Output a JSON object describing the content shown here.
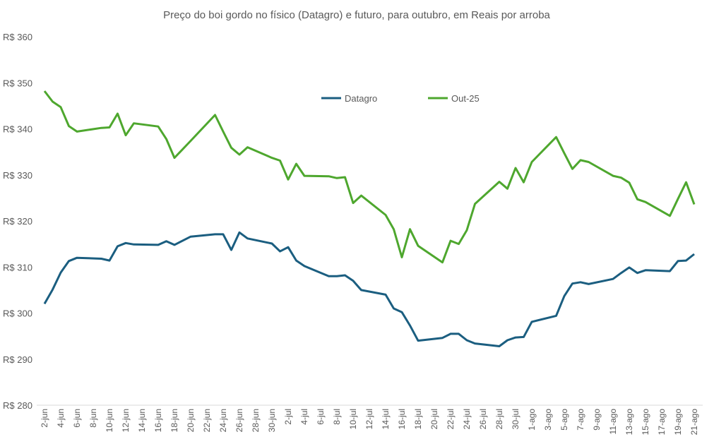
{
  "chart_data": {
    "type": "line",
    "title": "Preço do boi gordo no físico (Datagro) e futuro, para outubro, em Reais por arroba",
    "xlabel": "",
    "ylabel": "",
    "ylim": [
      280,
      360
    ],
    "y_ticks": [
      "R$ 280",
      "R$ 290",
      "R$ 300",
      "R$ 310",
      "R$ 320",
      "R$ 330",
      "R$ 340",
      "R$ 350",
      "R$ 360"
    ],
    "y_tick_values": [
      280,
      290,
      300,
      310,
      320,
      330,
      340,
      350,
      360
    ],
    "x_range": [
      "2-jun",
      "21-ago"
    ],
    "x_ticks": [
      "2-jun",
      "4-jun",
      "6-jun",
      "8-jun",
      "10-jun",
      "12-jun",
      "14-jun",
      "16-jun",
      "18-jun",
      "20-jun",
      "22-jun",
      "24-jun",
      "26-jun",
      "28-jun",
      "30-jun",
      "2-jul",
      "4-jul",
      "6-jul",
      "8-jul",
      "10-jul",
      "12-jul",
      "14-jul",
      "16-jul",
      "18-jul",
      "20-jul",
      "22-jul",
      "24-jul",
      "26-jul",
      "28-jul",
      "30-jul",
      "1-ago",
      "3-ago",
      "5-ago",
      "7-ago",
      "9-ago",
      "11-ago",
      "13-ago",
      "15-ago",
      "17-ago",
      "19-ago",
      "21-ago"
    ],
    "grid": false,
    "legend": "top-center",
    "x": [
      "2-jun",
      "3-jun",
      "4-jun",
      "5-jun",
      "6-jun",
      "9-jun",
      "10-jun",
      "11-jun",
      "12-jun",
      "13-jun",
      "16-jun",
      "17-jun",
      "18-jun",
      "20-jun",
      "23-jun",
      "24-jun",
      "25-jun",
      "26-jun",
      "27-jun",
      "30-jun",
      "1-jul",
      "2-jul",
      "3-jul",
      "4-jul",
      "7-jul",
      "8-jul",
      "9-jul",
      "10-jul",
      "11-jul",
      "14-jul",
      "15-jul",
      "16-jul",
      "17-jul",
      "18-jul",
      "21-jul",
      "22-jul",
      "23-jul",
      "24-jul",
      "25-jul",
      "28-jul",
      "29-jul",
      "30-jul",
      "31-jul",
      "1-ago",
      "4-ago",
      "5-ago",
      "6-ago",
      "7-ago",
      "8-ago",
      "11-ago",
      "12-ago",
      "13-ago",
      "14-ago",
      "15-ago",
      "18-ago",
      "19-ago",
      "20-ago",
      "21-ago"
    ],
    "series": [
      {
        "name": "Datagro",
        "color": "#1b5e80",
        "values": [
          302.0,
          305.1,
          308.8,
          311.3,
          312.0,
          311.8,
          311.4,
          314.5,
          315.2,
          314.9,
          314.8,
          315.6,
          314.8,
          316.6,
          317.1,
          317.1,
          313.7,
          317.5,
          316.2,
          315.1,
          313.4,
          314.3,
          311.4,
          310.2,
          308.0,
          308.0,
          308.2,
          307.0,
          305.0,
          304.0,
          301.0,
          300.2,
          297.3,
          294.0,
          294.6,
          295.5,
          295.5,
          294.1,
          293.4,
          292.8,
          294.1,
          294.7,
          294.8,
          298.1,
          299.4,
          303.7,
          306.4,
          306.7,
          306.3,
          307.4,
          308.7,
          309.9,
          308.7,
          309.3,
          309.1,
          311.3,
          311.4,
          312.8
        ]
      },
      {
        "name": "Out-25",
        "color": "#4ea72e",
        "values": [
          348.2,
          345.9,
          344.7,
          340.6,
          339.4,
          340.2,
          340.3,
          343.3,
          338.6,
          341.2,
          340.5,
          337.8,
          333.7,
          337.4,
          343.0,
          339.4,
          335.9,
          334.4,
          336.0,
          333.7,
          333.1,
          329.0,
          332.4,
          329.8,
          329.7,
          329.3,
          329.5,
          323.9,
          325.5,
          321.3,
          318.2,
          312.1,
          318.2,
          314.6,
          311.0,
          315.7,
          315.0,
          318.0,
          323.7,
          328.5,
          327.0,
          331.5,
          328.4,
          332.8,
          338.2,
          334.7,
          331.3,
          333.2,
          332.8,
          329.8,
          329.4,
          328.3,
          324.7,
          324.1,
          321.1,
          324.8,
          328.4,
          323.6
        ]
      }
    ]
  }
}
